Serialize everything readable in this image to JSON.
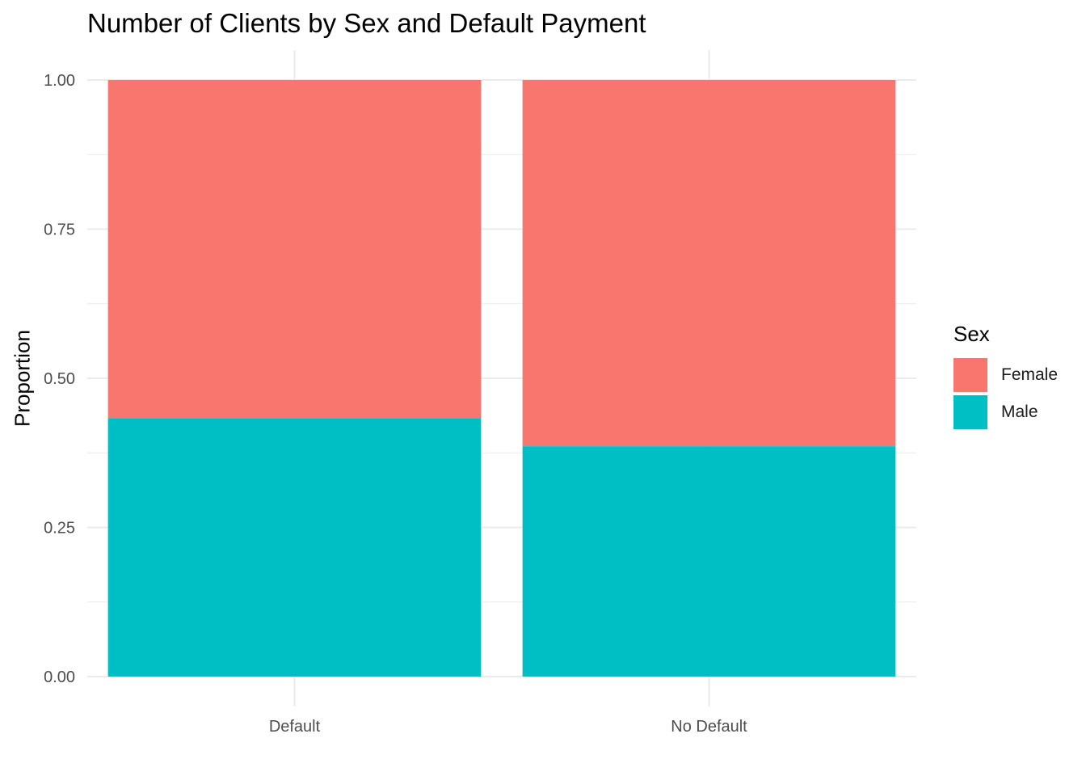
{
  "chart_data": {
    "type": "bar",
    "stacked": true,
    "title": "Number of Clients by Sex and Default Payment",
    "xlabel": "",
    "ylabel": "Proportion",
    "categories": [
      "Default",
      "No Default"
    ],
    "series": [
      {
        "name": "Female",
        "color": "#F8766D",
        "values": [
          0.567,
          0.614
        ]
      },
      {
        "name": "Male",
        "color": "#00BFC4",
        "values": [
          0.433,
          0.386
        ]
      }
    ],
    "ylim": [
      0,
      1
    ],
    "yticks": [
      0.0,
      0.25,
      0.5,
      0.75,
      1.0
    ],
    "ytick_labels": [
      "0.00",
      "0.25",
      "0.50",
      "0.75",
      "1.00"
    ],
    "grid": true,
    "legend": {
      "title": "Sex",
      "position": "right"
    }
  }
}
